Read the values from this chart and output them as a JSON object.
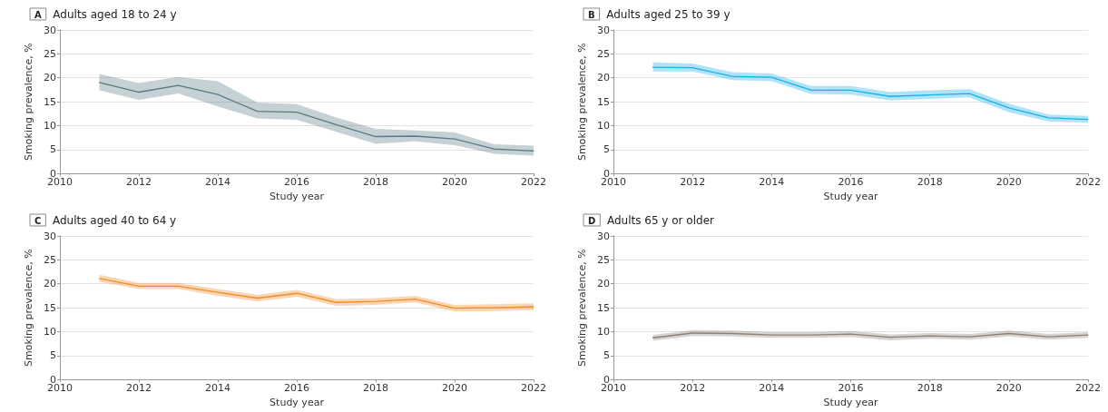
{
  "chart_data": [
    {
      "type": "line",
      "title": "Adults aged 18 to 24 y",
      "annotations": [
        "A"
      ],
      "xlabel": "Study year",
      "ylabel": "Smoking prevalence, %",
      "x": [
        2011,
        2012,
        2013,
        2014,
        2015,
        2016,
        2017,
        2018,
        2019,
        2020,
        2021,
        2022
      ],
      "xlim": [
        2010,
        2022
      ],
      "xticks": [
        2010,
        2012,
        2014,
        2016,
        2018,
        2020,
        2022
      ],
      "ylim": [
        0,
        30
      ],
      "yticks": [
        0,
        5,
        10,
        15,
        20,
        25,
        30
      ],
      "grid": "y",
      "marker": "none",
      "line_style": "solid",
      "series": [
        {
          "color": "#5a7a86",
          "values": [
            19.0,
            17.0,
            18.4,
            16.5,
            13.0,
            12.8,
            10.2,
            7.7,
            7.8,
            7.2,
            5.1,
            4.7
          ],
          "lower": [
            17.4,
            15.4,
            16.7,
            14.0,
            11.5,
            11.2,
            8.7,
            6.2,
            6.7,
            5.9,
            4.1,
            3.7
          ],
          "upper": [
            20.8,
            18.9,
            20.2,
            19.3,
            14.8,
            14.5,
            11.7,
            9.3,
            9.0,
            8.6,
            6.1,
            5.8
          ]
        }
      ]
    },
    {
      "type": "line",
      "title": "Adults aged 25 to 39 y",
      "annotations": [
        "B"
      ],
      "xlabel": "Study year",
      "ylabel": "Smoking prevalence, %",
      "x": [
        2011,
        2012,
        2013,
        2014,
        2015,
        2016,
        2017,
        2018,
        2019,
        2020,
        2021,
        2022
      ],
      "xlim": [
        2010,
        2022
      ],
      "xticks": [
        2010,
        2012,
        2014,
        2016,
        2018,
        2020,
        2022
      ],
      "ylim": [
        0,
        30
      ],
      "yticks": [
        0,
        5,
        10,
        15,
        20,
        25,
        30
      ],
      "grid": "y",
      "marker": "none",
      "line_style": "solid",
      "series": [
        {
          "color": "#1ab0e8",
          "values": [
            22.2,
            22.1,
            20.3,
            20.1,
            17.4,
            17.4,
            16.1,
            16.4,
            16.7,
            13.7,
            11.6,
            11.3
          ],
          "lower": [
            21.3,
            21.3,
            19.5,
            19.3,
            16.6,
            16.5,
            15.3,
            15.6,
            15.9,
            12.8,
            10.9,
            10.6
          ],
          "upper": [
            23.2,
            23.0,
            21.2,
            20.9,
            18.3,
            18.3,
            17.0,
            17.4,
            17.6,
            14.6,
            12.3,
            12.0
          ]
        }
      ]
    },
    {
      "type": "line",
      "title": "Adults aged 40 to 64 y",
      "annotations": [
        "C"
      ],
      "xlabel": "Study year",
      "ylabel": "Smoking prevalence, %",
      "x": [
        2011,
        2012,
        2013,
        2014,
        2015,
        2016,
        2017,
        2018,
        2019,
        2020,
        2021,
        2022
      ],
      "xlim": [
        2010,
        2022
      ],
      "xticks": [
        2010,
        2012,
        2014,
        2016,
        2018,
        2020,
        2022
      ],
      "ylim": [
        0,
        30
      ],
      "yticks": [
        0,
        5,
        10,
        15,
        20,
        25,
        30
      ],
      "grid": "y",
      "marker": "none",
      "line_style": "solid",
      "series": [
        {
          "color": "#f28c28",
          "values": [
            21.1,
            19.5,
            19.5,
            18.2,
            17.0,
            18.0,
            16.1,
            16.3,
            16.8,
            14.9,
            15.0,
            15.2
          ],
          "lower": [
            20.4,
            18.9,
            18.9,
            17.5,
            16.3,
            17.3,
            15.4,
            15.6,
            16.1,
            14.2,
            14.3,
            14.5
          ],
          "upper": [
            21.9,
            20.2,
            20.2,
            18.9,
            17.7,
            18.7,
            16.8,
            17.0,
            17.5,
            15.6,
            15.7,
            15.9
          ]
        }
      ]
    },
    {
      "type": "line",
      "title": "Adults 65 y or older",
      "annotations": [
        "D"
      ],
      "xlabel": "Study year",
      "ylabel": "Smoking prevalence, %",
      "x": [
        2011,
        2012,
        2013,
        2014,
        2015,
        2016,
        2017,
        2018,
        2019,
        2020,
        2021,
        2022
      ],
      "xlim": [
        2010,
        2022
      ],
      "xticks": [
        2010,
        2012,
        2014,
        2016,
        2018,
        2020,
        2022
      ],
      "ylim": [
        0,
        30
      ],
      "yticks": [
        0,
        5,
        10,
        15,
        20,
        25,
        30
      ],
      "grid": "y",
      "marker": "none",
      "line_style": "solid",
      "series": [
        {
          "color": "#8a8178",
          "values": [
            8.7,
            9.7,
            9.6,
            9.3,
            9.3,
            9.5,
            8.8,
            9.1,
            8.9,
            9.6,
            8.9,
            9.3
          ],
          "lower": [
            8.1,
            9.1,
            9.0,
            8.7,
            8.7,
            8.9,
            8.2,
            8.5,
            8.3,
            9.0,
            8.3,
            8.7
          ],
          "upper": [
            9.3,
            10.3,
            10.2,
            9.9,
            9.9,
            10.1,
            9.4,
            9.7,
            9.5,
            10.2,
            9.5,
            9.9
          ]
        }
      ]
    }
  ]
}
